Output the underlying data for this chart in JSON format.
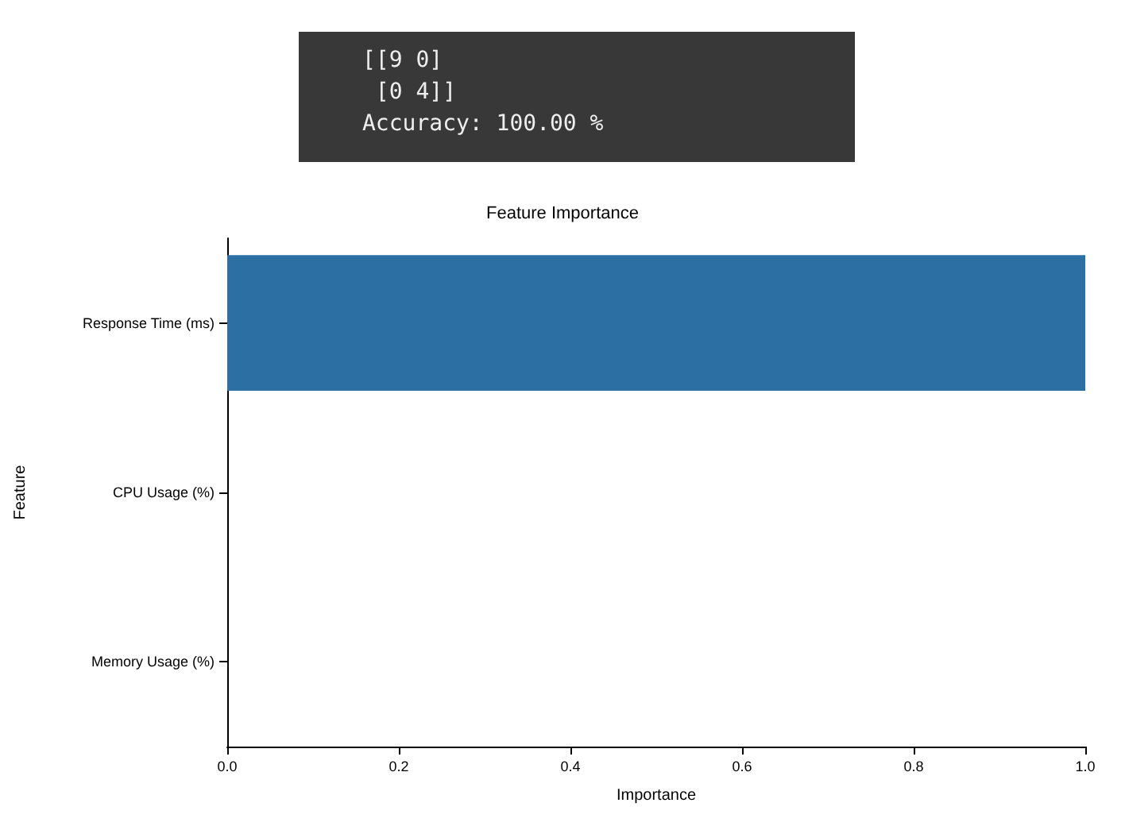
{
  "chart_data": {
    "type": "bar",
    "orientation": "horizontal",
    "title": "Feature Importance",
    "xlabel": "Importance",
    "ylabel": "Feature",
    "categories": [
      "Response Time (ms)",
      "CPU Usage (%)",
      "Memory Usage (%)"
    ],
    "values": [
      1.0,
      0,
      0
    ],
    "color": "#2b6fa3",
    "xlim": [
      0,
      1.0
    ],
    "xticks": [
      {
        "value": 0,
        "label": "0.0"
      },
      {
        "value": 0.2,
        "label": "0.2"
      },
      {
        "value": 0.4,
        "label": "0.4"
      },
      {
        "value": 0.6,
        "label": "0.6"
      },
      {
        "value": 0.8,
        "label": "0.8"
      },
      {
        "value": 1.0,
        "label": "1.0"
      }
    ],
    "grid": false,
    "annotations": [
      "[[9 0]\n [0 4]]\nAccuracy: 100.00 %"
    ]
  }
}
